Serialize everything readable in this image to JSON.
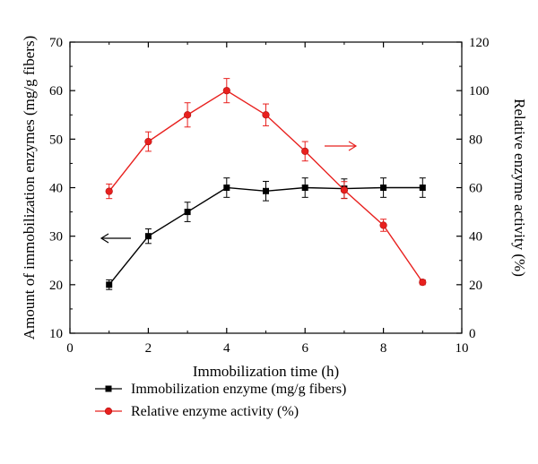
{
  "chart_data": {
    "type": "line",
    "xlabel": "Immobilization time (h)",
    "ylabel_left": "Amount of immobilization enzymes (mg/g fibers)",
    "ylabel_right": "Relative enzyme activity (%)",
    "xlim": [
      0,
      10
    ],
    "ylim_left": [
      10,
      70
    ],
    "ylim_right": [
      0,
      120
    ],
    "x_ticks": [
      0,
      2,
      4,
      6,
      8,
      10
    ],
    "y_left_ticks": [
      10,
      20,
      30,
      40,
      50,
      60,
      70
    ],
    "y_right_ticks": [
      0,
      20,
      40,
      60,
      80,
      100,
      120
    ],
    "grid": false,
    "legend_position": "bottom",
    "series": [
      {
        "name": "Immobilization enzyme (mg/g fibers)",
        "axis": "left",
        "color": "#000000",
        "marker": "square",
        "x": [
          1,
          2,
          3,
          4,
          5,
          6,
          7,
          8,
          9
        ],
        "y": [
          20,
          30,
          35,
          40,
          39.3,
          40,
          39.8,
          40,
          40
        ],
        "error": [
          1,
          1.5,
          2,
          2,
          2,
          2,
          2,
          2,
          2
        ]
      },
      {
        "name": "Relative enzyme activity (%)",
        "axis": "right",
        "color": "#e8201e",
        "marker": "circle",
        "x": [
          1,
          2,
          3,
          4,
          5,
          6,
          7,
          8,
          9
        ],
        "y": [
          58.5,
          79,
          90,
          100,
          90,
          75,
          59,
          44.5,
          21
        ],
        "error": [
          3,
          4,
          5,
          5,
          4.5,
          4,
          3.5,
          2.5,
          1
        ]
      }
    ]
  }
}
